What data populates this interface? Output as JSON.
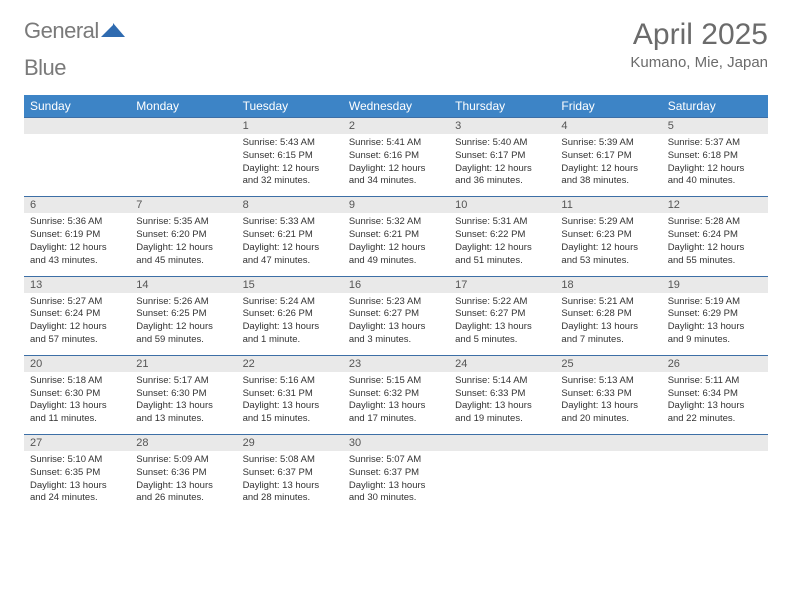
{
  "logo": {
    "part1": "General",
    "part2": "Blue",
    "mark_color": "#2f6bb0"
  },
  "header": {
    "title": "April 2025",
    "location": "Kumano, Mie, Japan"
  },
  "colors": {
    "header_bg": "#3d84c6",
    "row_border": "#3d6fa6",
    "daynum_bg": "#e9e9e9",
    "text": "#333333",
    "muted": "#6b6b6b"
  },
  "day_labels": [
    "Sunday",
    "Monday",
    "Tuesday",
    "Wednesday",
    "Thursday",
    "Friday",
    "Saturday"
  ],
  "weeks": [
    [
      {
        "num": "",
        "empty": true
      },
      {
        "num": "",
        "empty": true
      },
      {
        "num": "1",
        "sunrise": "Sunrise: 5:43 AM",
        "sunset": "Sunset: 6:15 PM",
        "daylight1": "Daylight: 12 hours",
        "daylight2": "and 32 minutes."
      },
      {
        "num": "2",
        "sunrise": "Sunrise: 5:41 AM",
        "sunset": "Sunset: 6:16 PM",
        "daylight1": "Daylight: 12 hours",
        "daylight2": "and 34 minutes."
      },
      {
        "num": "3",
        "sunrise": "Sunrise: 5:40 AM",
        "sunset": "Sunset: 6:17 PM",
        "daylight1": "Daylight: 12 hours",
        "daylight2": "and 36 minutes."
      },
      {
        "num": "4",
        "sunrise": "Sunrise: 5:39 AM",
        "sunset": "Sunset: 6:17 PM",
        "daylight1": "Daylight: 12 hours",
        "daylight2": "and 38 minutes."
      },
      {
        "num": "5",
        "sunrise": "Sunrise: 5:37 AM",
        "sunset": "Sunset: 6:18 PM",
        "daylight1": "Daylight: 12 hours",
        "daylight2": "and 40 minutes."
      }
    ],
    [
      {
        "num": "6",
        "sunrise": "Sunrise: 5:36 AM",
        "sunset": "Sunset: 6:19 PM",
        "daylight1": "Daylight: 12 hours",
        "daylight2": "and 43 minutes."
      },
      {
        "num": "7",
        "sunrise": "Sunrise: 5:35 AM",
        "sunset": "Sunset: 6:20 PM",
        "daylight1": "Daylight: 12 hours",
        "daylight2": "and 45 minutes."
      },
      {
        "num": "8",
        "sunrise": "Sunrise: 5:33 AM",
        "sunset": "Sunset: 6:21 PM",
        "daylight1": "Daylight: 12 hours",
        "daylight2": "and 47 minutes."
      },
      {
        "num": "9",
        "sunrise": "Sunrise: 5:32 AM",
        "sunset": "Sunset: 6:21 PM",
        "daylight1": "Daylight: 12 hours",
        "daylight2": "and 49 minutes."
      },
      {
        "num": "10",
        "sunrise": "Sunrise: 5:31 AM",
        "sunset": "Sunset: 6:22 PM",
        "daylight1": "Daylight: 12 hours",
        "daylight2": "and 51 minutes."
      },
      {
        "num": "11",
        "sunrise": "Sunrise: 5:29 AM",
        "sunset": "Sunset: 6:23 PM",
        "daylight1": "Daylight: 12 hours",
        "daylight2": "and 53 minutes."
      },
      {
        "num": "12",
        "sunrise": "Sunrise: 5:28 AM",
        "sunset": "Sunset: 6:24 PM",
        "daylight1": "Daylight: 12 hours",
        "daylight2": "and 55 minutes."
      }
    ],
    [
      {
        "num": "13",
        "sunrise": "Sunrise: 5:27 AM",
        "sunset": "Sunset: 6:24 PM",
        "daylight1": "Daylight: 12 hours",
        "daylight2": "and 57 minutes."
      },
      {
        "num": "14",
        "sunrise": "Sunrise: 5:26 AM",
        "sunset": "Sunset: 6:25 PM",
        "daylight1": "Daylight: 12 hours",
        "daylight2": "and 59 minutes."
      },
      {
        "num": "15",
        "sunrise": "Sunrise: 5:24 AM",
        "sunset": "Sunset: 6:26 PM",
        "daylight1": "Daylight: 13 hours",
        "daylight2": "and 1 minute."
      },
      {
        "num": "16",
        "sunrise": "Sunrise: 5:23 AM",
        "sunset": "Sunset: 6:27 PM",
        "daylight1": "Daylight: 13 hours",
        "daylight2": "and 3 minutes."
      },
      {
        "num": "17",
        "sunrise": "Sunrise: 5:22 AM",
        "sunset": "Sunset: 6:27 PM",
        "daylight1": "Daylight: 13 hours",
        "daylight2": "and 5 minutes."
      },
      {
        "num": "18",
        "sunrise": "Sunrise: 5:21 AM",
        "sunset": "Sunset: 6:28 PM",
        "daylight1": "Daylight: 13 hours",
        "daylight2": "and 7 minutes."
      },
      {
        "num": "19",
        "sunrise": "Sunrise: 5:19 AM",
        "sunset": "Sunset: 6:29 PM",
        "daylight1": "Daylight: 13 hours",
        "daylight2": "and 9 minutes."
      }
    ],
    [
      {
        "num": "20",
        "sunrise": "Sunrise: 5:18 AM",
        "sunset": "Sunset: 6:30 PM",
        "daylight1": "Daylight: 13 hours",
        "daylight2": "and 11 minutes."
      },
      {
        "num": "21",
        "sunrise": "Sunrise: 5:17 AM",
        "sunset": "Sunset: 6:30 PM",
        "daylight1": "Daylight: 13 hours",
        "daylight2": "and 13 minutes."
      },
      {
        "num": "22",
        "sunrise": "Sunrise: 5:16 AM",
        "sunset": "Sunset: 6:31 PM",
        "daylight1": "Daylight: 13 hours",
        "daylight2": "and 15 minutes."
      },
      {
        "num": "23",
        "sunrise": "Sunrise: 5:15 AM",
        "sunset": "Sunset: 6:32 PM",
        "daylight1": "Daylight: 13 hours",
        "daylight2": "and 17 minutes."
      },
      {
        "num": "24",
        "sunrise": "Sunrise: 5:14 AM",
        "sunset": "Sunset: 6:33 PM",
        "daylight1": "Daylight: 13 hours",
        "daylight2": "and 19 minutes."
      },
      {
        "num": "25",
        "sunrise": "Sunrise: 5:13 AM",
        "sunset": "Sunset: 6:33 PM",
        "daylight1": "Daylight: 13 hours",
        "daylight2": "and 20 minutes."
      },
      {
        "num": "26",
        "sunrise": "Sunrise: 5:11 AM",
        "sunset": "Sunset: 6:34 PM",
        "daylight1": "Daylight: 13 hours",
        "daylight2": "and 22 minutes."
      }
    ],
    [
      {
        "num": "27",
        "sunrise": "Sunrise: 5:10 AM",
        "sunset": "Sunset: 6:35 PM",
        "daylight1": "Daylight: 13 hours",
        "daylight2": "and 24 minutes."
      },
      {
        "num": "28",
        "sunrise": "Sunrise: 5:09 AM",
        "sunset": "Sunset: 6:36 PM",
        "daylight1": "Daylight: 13 hours",
        "daylight2": "and 26 minutes."
      },
      {
        "num": "29",
        "sunrise": "Sunrise: 5:08 AM",
        "sunset": "Sunset: 6:37 PM",
        "daylight1": "Daylight: 13 hours",
        "daylight2": "and 28 minutes."
      },
      {
        "num": "30",
        "sunrise": "Sunrise: 5:07 AM",
        "sunset": "Sunset: 6:37 PM",
        "daylight1": "Daylight: 13 hours",
        "daylight2": "and 30 minutes."
      },
      {
        "num": "",
        "empty": true
      },
      {
        "num": "",
        "empty": true
      },
      {
        "num": "",
        "empty": true
      }
    ]
  ]
}
